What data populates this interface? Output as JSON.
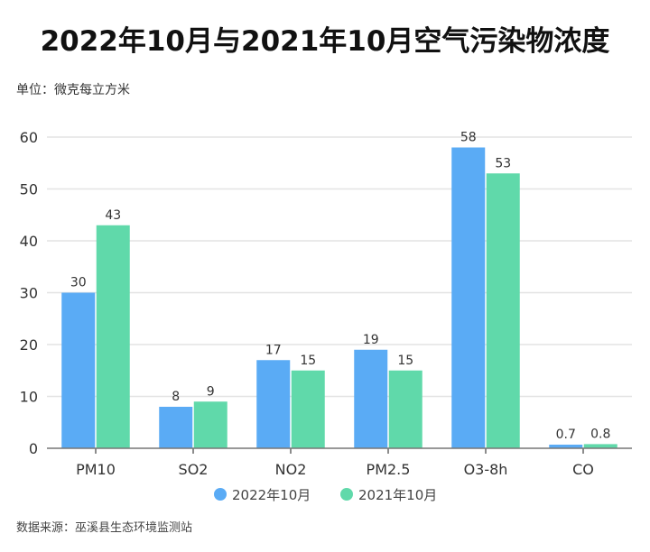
{
  "chart_data": {
    "type": "bar",
    "title": "2022年10月与2021年10月空气污染物浓度",
    "unit_label": "单位：微克每立方米",
    "source": "数据来源：巫溪县生态环境监测站",
    "categories": [
      "PM10",
      "SO2",
      "NO2",
      "PM2.5",
      "O3-8h",
      "CO"
    ],
    "series": [
      {
        "name": "2022年10月",
        "color": "#5aabf5",
        "values": [
          30,
          8,
          17,
          19,
          58,
          0.7
        ],
        "labels": [
          "30",
          "8",
          "17",
          "19",
          "58",
          "0.7"
        ]
      },
      {
        "name": "2021年10月",
        "color": "#60d9aa",
        "values": [
          43,
          9,
          15,
          15,
          53,
          0.8
        ],
        "labels": [
          "43",
          "9",
          "15",
          "15",
          "53",
          "0.8"
        ]
      }
    ],
    "ylim": [
      0,
      60
    ],
    "yticks": [
      "0",
      "10",
      "20",
      "30",
      "40",
      "50",
      "60"
    ],
    "xlabel": "",
    "ylabel": "",
    "grid": true,
    "legend": "bottom-center"
  }
}
